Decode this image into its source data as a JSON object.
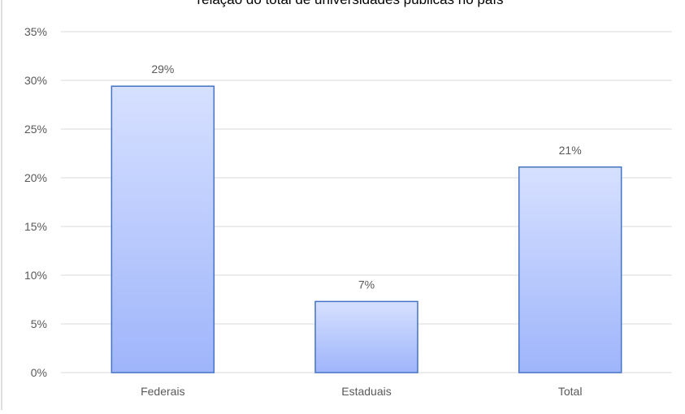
{
  "chart_data": {
    "type": "bar",
    "title": "relação do total de universidades públicas no país",
    "xlabel": "",
    "ylabel": "",
    "categories": [
      "Federais",
      "Estaduais",
      "Total"
    ],
    "values": [
      29.4,
      7.3,
      21.1
    ],
    "data_labels": [
      "29%",
      "7%",
      "21%"
    ],
    "ylim": [
      0,
      35
    ],
    "yticks": [
      0,
      5,
      10,
      15,
      20,
      25,
      30,
      35
    ],
    "ytick_labels": [
      "0%",
      "5%",
      "10%",
      "15%",
      "20%",
      "25%",
      "30%",
      "35%"
    ],
    "grid": true,
    "legend": "none",
    "colors": {
      "bar_top": "#d6e0ff",
      "bar_bottom": "#9fb5fb",
      "bar_border": "#4472c4",
      "grid": "#d9d9d9",
      "border": "#bfbfbf"
    }
  }
}
